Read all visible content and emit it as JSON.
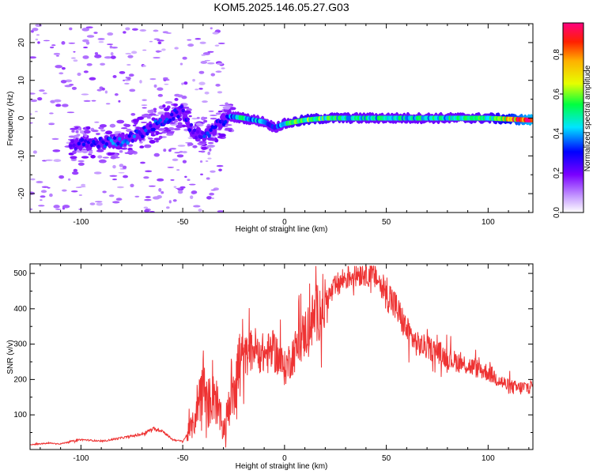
{
  "title": "KOM5.2025.146.05.27.G03",
  "chart_data": [
    {
      "type": "heatmap",
      "xlabel": "Height of straight line (km)",
      "ylabel": "Frequency (Hz)",
      "xlim": [
        -125,
        122
      ],
      "ylim": [
        -25,
        25
      ],
      "xticks": [
        -100,
        -50,
        0,
        50,
        100
      ],
      "yticks": [
        -20,
        -10,
        0,
        10,
        20
      ],
      "colorbar": {
        "label": "Normalized spectral amplitude",
        "range": [
          0,
          0.96
        ],
        "ticks": [
          0.0,
          0.2,
          0.4,
          0.6,
          0.8
        ],
        "colors": [
          "#ffffff",
          "#c8a0ff",
          "#7a00ff",
          "#0000ff",
          "#00e5ff",
          "#00ff40",
          "#e6ff00",
          "#ffb000",
          "#ff2000",
          "#ff0080"
        ]
      },
      "ridge": {
        "x": [
          -100,
          -90,
          -80,
          -70,
          -60,
          -50,
          -45,
          -40,
          -35,
          -30,
          -27,
          -20,
          -15,
          -10,
          -5,
          0,
          5,
          10,
          20,
          40,
          60,
          80,
          100,
          120
        ],
        "freq": [
          -7,
          -6.5,
          -6,
          -4,
          -1,
          2,
          -4,
          -4.5,
          -3,
          -0.5,
          0.5,
          0,
          -0.5,
          -1,
          -2.5,
          -1.5,
          -1,
          -0.5,
          0,
          0,
          0,
          0,
          0,
          -0.5
        ],
        "amplitude": [
          0.25,
          0.3,
          0.35,
          0.3,
          0.3,
          0.25,
          0.25,
          0.3,
          0.25,
          0.3,
          0.35,
          0.45,
          0.4,
          0.35,
          0.3,
          0.45,
          0.5,
          0.55,
          0.5,
          0.45,
          0.45,
          0.45,
          0.5,
          0.9
        ]
      }
    },
    {
      "type": "line",
      "xlabel": "Height of straight line (km)",
      "ylabel": "SNR (v/v)",
      "xlim": [
        -125,
        122
      ],
      "ylim": [
        2,
        527
      ],
      "xticks": [
        -100,
        -50,
        0,
        50,
        100
      ],
      "yticks": [
        100,
        200,
        300,
        400,
        500
      ],
      "line_color": "#ee3333",
      "series": [
        {
          "x": [
            -125,
            -120,
            -115,
            -110,
            -105,
            -100,
            -95,
            -90,
            -85,
            -80,
            -75,
            -70,
            -65,
            -60,
            -55,
            -50,
            -45,
            -42,
            -40,
            -38,
            -35,
            -32,
            -30,
            -28,
            -25,
            -20,
            -15,
            -10,
            -5,
            0,
            5,
            10,
            15,
            20,
            25,
            30,
            35,
            40,
            45,
            48,
            50,
            55,
            60,
            65,
            70,
            75,
            80,
            85,
            90,
            95,
            100,
            105,
            110,
            115,
            120
          ],
          "y": [
            15,
            18,
            20,
            18,
            25,
            30,
            28,
            25,
            30,
            35,
            40,
            45,
            60,
            55,
            30,
            25,
            70,
            150,
            200,
            120,
            180,
            100,
            60,
            100,
            200,
            260,
            290,
            270,
            280,
            230,
            280,
            330,
            380,
            420,
            460,
            490,
            500,
            505,
            490,
            460,
            450,
            400,
            340,
            300,
            290,
            280,
            260,
            250,
            240,
            230,
            220,
            200,
            180,
            175,
            180
          ]
        }
      ]
    }
  ]
}
